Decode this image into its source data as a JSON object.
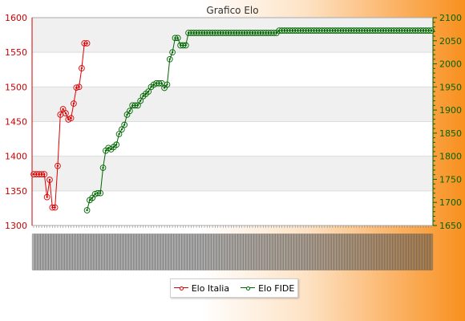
{
  "chart_data": {
    "type": "line",
    "title": "Grafico Elo",
    "left_axis": {
      "ylim": [
        1300,
        1600
      ],
      "ticks": [
        1300,
        1350,
        1400,
        1450,
        1500,
        1550,
        1600
      ],
      "color": "#cc0000"
    },
    "right_axis": {
      "ylim": [
        1650,
        2100
      ],
      "ticks": [
        1650,
        1700,
        1750,
        1800,
        1850,
        1900,
        1950,
        2000,
        2050,
        2100
      ],
      "color": "#006600"
    },
    "grid": true,
    "legend_position": "bottom-center",
    "n_points": 150,
    "series": [
      {
        "name": "Elo Italia",
        "axis": "left",
        "color": "#dd0000",
        "x": [
          0,
          1,
          2,
          3,
          4,
          5,
          6,
          7,
          8,
          9,
          10,
          11,
          12,
          13,
          14,
          15,
          16,
          17,
          18,
          19,
          20
        ],
        "values": [
          1374,
          1374,
          1374,
          1374,
          1374,
          1341,
          1366,
          1326,
          1326,
          1386,
          1460,
          1468,
          1462,
          1453,
          1455,
          1476,
          1499,
          1500,
          1527,
          1563,
          1563
        ]
      },
      {
        "name": "Elo FIDE",
        "axis": "right",
        "color": "#006600",
        "x": [
          20,
          21,
          22,
          23,
          24,
          25,
          26,
          27,
          28,
          29,
          30,
          31,
          32,
          33,
          34,
          35,
          36,
          37,
          38,
          39,
          40,
          41,
          42,
          43,
          44,
          45,
          46,
          47,
          48,
          49,
          50,
          51,
          52,
          53,
          54,
          55,
          56,
          57,
          58,
          59,
          60,
          61,
          62,
          63,
          64,
          65,
          66,
          67,
          68,
          69,
          70,
          71,
          72,
          73,
          74,
          75,
          76,
          77,
          78,
          79,
          80,
          81,
          82,
          83,
          84,
          85,
          86,
          87,
          88,
          89,
          90,
          91,
          92,
          93,
          94,
          95,
          96,
          97,
          98,
          99,
          100,
          101,
          102,
          103,
          104,
          105,
          106,
          107,
          108,
          109,
          110,
          111,
          112,
          113,
          114,
          115,
          116,
          117,
          118,
          119,
          120,
          121,
          122,
          123,
          124,
          125,
          126,
          127,
          128,
          129,
          130,
          131,
          132,
          133,
          134,
          135,
          136,
          137,
          138,
          139,
          140,
          141,
          142,
          143,
          144,
          145,
          146,
          147,
          148,
          149
        ],
        "values": [
          1683,
          1705,
          1710,
          1718,
          1720,
          1720,
          1775,
          1812,
          1818,
          1815,
          1820,
          1825,
          1848,
          1858,
          1868,
          1890,
          1898,
          1910,
          1910,
          1910,
          1920,
          1930,
          1935,
          1940,
          1950,
          1955,
          1958,
          1958,
          1958,
          1948,
          1955,
          2010,
          2025,
          2056,
          2056,
          2040,
          2040,
          2040,
          2067,
          2067,
          2067,
          2067,
          2067,
          2067,
          2067,
          2067,
          2067,
          2067,
          2067,
          2067,
          2067,
          2067,
          2067,
          2067,
          2067,
          2067,
          2067,
          2067,
          2067,
          2067,
          2067,
          2067,
          2067,
          2067,
          2067,
          2067,
          2067,
          2067,
          2067,
          2067,
          2067,
          2067,
          2072,
          2072,
          2072,
          2072,
          2072,
          2072,
          2072,
          2072,
          2072,
          2072,
          2072,
          2072,
          2072,
          2072,
          2072,
          2072,
          2072,
          2072,
          2072,
          2072,
          2072,
          2072,
          2072,
          2072,
          2072,
          2072,
          2072,
          2072,
          2072,
          2072,
          2072,
          2072,
          2072,
          2072,
          2072,
          2072,
          2072,
          2072,
          2072,
          2072,
          2072,
          2072,
          2072,
          2072,
          2072,
          2072,
          2072,
          2072,
          2072,
          2072,
          2072,
          2072,
          2072,
          2072,
          2072,
          2072,
          2072,
          2072
        ]
      }
    ]
  }
}
